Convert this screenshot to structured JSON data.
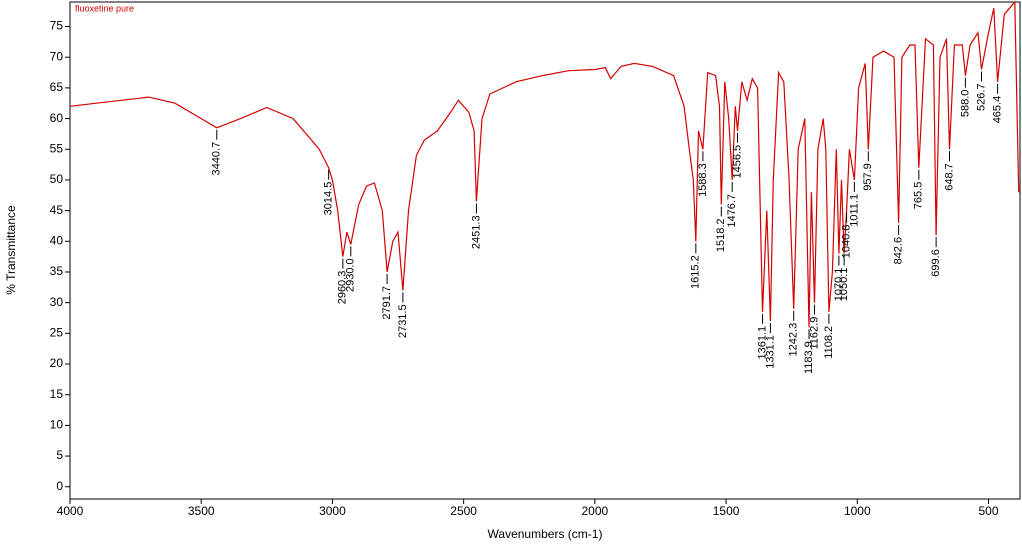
{
  "chart_data": {
    "type": "line",
    "title": "fluoxetine pure",
    "xlabel": "Wavenumbers (cm-1)",
    "ylabel": "% Transmittance",
    "xlim": [
      4000,
      380
    ],
    "ylim": [
      -2,
      79
    ],
    "xticks": [
      4000,
      3500,
      3000,
      2500,
      2000,
      1500,
      1000,
      500
    ],
    "yticks": [
      0,
      5,
      10,
      15,
      20,
      25,
      30,
      35,
      40,
      45,
      50,
      55,
      60,
      65,
      70,
      75
    ],
    "series": [
      {
        "name": "fluoxetine pure",
        "color": "#d40000",
        "x": [
          4000,
          3900,
          3800,
          3700,
          3600,
          3500,
          3440.7,
          3350,
          3250,
          3150,
          3100,
          3050,
          3014.5,
          3000,
          2980,
          2960.3,
          2945,
          2930,
          2900,
          2870,
          2840,
          2810,
          2791.7,
          2770,
          2750,
          2731.5,
          2710,
          2680,
          2650,
          2600,
          2550,
          2520,
          2480,
          2460,
          2451.3,
          2430,
          2400,
          2300,
          2200,
          2100,
          2000,
          1960,
          1940,
          1900,
          1850,
          1780,
          1700,
          1660,
          1640,
          1625,
          1615.2,
          1605,
          1588.3,
          1570,
          1540,
          1525,
          1518.2,
          1505,
          1490,
          1476.7,
          1465,
          1456.5,
          1440,
          1420,
          1400,
          1380,
          1361.1,
          1345,
          1331.1,
          1320,
          1300,
          1280,
          1260,
          1242.3,
          1225,
          1200,
          1183.9,
          1175,
          1162.9,
          1150,
          1130,
          1120,
          1108.2,
          1095,
          1080,
          1070.1,
          1060,
          1050.1,
          1040.8,
          1030,
          1011.1,
          995,
          970,
          957.9,
          940,
          900,
          860,
          842.6,
          830,
          800,
          780,
          765.5,
          740,
          710,
          699.6,
          685,
          660,
          648.7,
          630,
          600,
          588.0,
          570,
          540,
          526.7,
          500,
          480,
          465.4,
          440,
          400,
          385
        ],
        "values": [
          62,
          62.5,
          63,
          63.5,
          62.5,
          60,
          58.5,
          60,
          61.8,
          60,
          57.5,
          55,
          52,
          50,
          45,
          37.5,
          41.5,
          39.5,
          46,
          49,
          49.5,
          45,
          35,
          40,
          41.5,
          32,
          45,
          54,
          56.5,
          58,
          61,
          63,
          61,
          58,
          46.5,
          60,
          64,
          66,
          67,
          67.8,
          68,
          68.3,
          66.5,
          68.5,
          69,
          68.5,
          67,
          62,
          55,
          50,
          40,
          58,
          55,
          67.5,
          67,
          62,
          46,
          66,
          60,
          50,
          62,
          58,
          66,
          63,
          66.5,
          65,
          28.5,
          45,
          27,
          50,
          67.5,
          66,
          50,
          29,
          55,
          60,
          26,
          48,
          30,
          55,
          60,
          55,
          28.5,
          35,
          55,
          38,
          50,
          38,
          45,
          55,
          50,
          65,
          69,
          55,
          70,
          71,
          70,
          43,
          70,
          72,
          72,
          52,
          73,
          72,
          41,
          70,
          73,
          55,
          72,
          72,
          67,
          72,
          74,
          68,
          74,
          78,
          66,
          77,
          79,
          48
        ]
      }
    ],
    "peaks": [
      3440.7,
      3014.5,
      2960.3,
      2930.0,
      2791.7,
      2731.5,
      2451.3,
      1615.2,
      1588.3,
      1518.2,
      1476.7,
      1456.5,
      1361.1,
      1331.1,
      1242.3,
      1183.9,
      1162.9,
      1108.2,
      1070.1,
      1050.1,
      1040.8,
      1011.1,
      957.9,
      842.6,
      765.5,
      699.6,
      648.7,
      588.0,
      526.7,
      465.4
    ],
    "peak_labels": [
      "3440.7",
      "3014.5",
      "2960.3",
      "2930.0",
      "2791.7",
      "2731.5",
      "2451.3",
      "1615.2",
      "1588.3",
      "1518.2",
      "1476.7",
      "1456.5",
      "1361.1",
      "1331.1",
      "1242.3",
      "1183.9",
      "1162.9",
      "1108.2",
      "1070.1",
      "1050.1",
      "1040.8",
      "1011.1",
      "957.9",
      "842.6",
      "765.5",
      "699.6",
      "648.7",
      "588.0",
      "526.7",
      "465.4"
    ]
  }
}
